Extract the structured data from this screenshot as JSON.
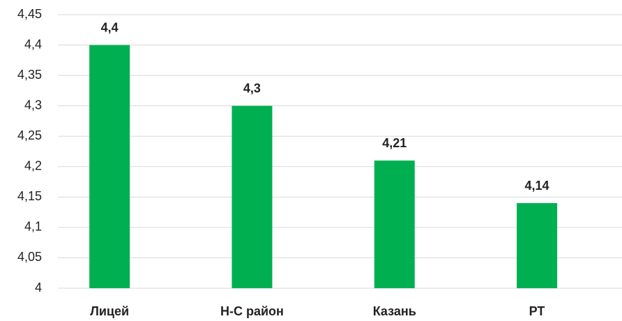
{
  "chart_data": {
    "type": "bar",
    "categories": [
      "Лицей",
      "Н-С район",
      "Казань",
      "РТ"
    ],
    "values": [
      4.4,
      4.3,
      4.21,
      4.14
    ],
    "value_labels": [
      "4,4",
      "4,3",
      "4,21",
      "4,14"
    ],
    "color": "#00b050",
    "ylim": [
      4,
      4.45
    ],
    "yticks": [
      4,
      {
        "value": 4.05,
        "label": "4,05"
      },
      {
        "value": 4.1,
        "label": "4,1"
      },
      {
        "value": 4.15,
        "label": "4,15"
      },
      {
        "value": 4.2,
        "label": "4,2"
      },
      {
        "value": 4.25,
        "label": "4,25"
      },
      {
        "value": 4.3,
        "label": "4,3"
      },
      {
        "value": 4.35,
        "label": "4,35"
      },
      {
        "value": 4.4,
        "label": "4,4"
      },
      {
        "value": 4.45,
        "label": "4,45"
      }
    ],
    "grid": true
  }
}
